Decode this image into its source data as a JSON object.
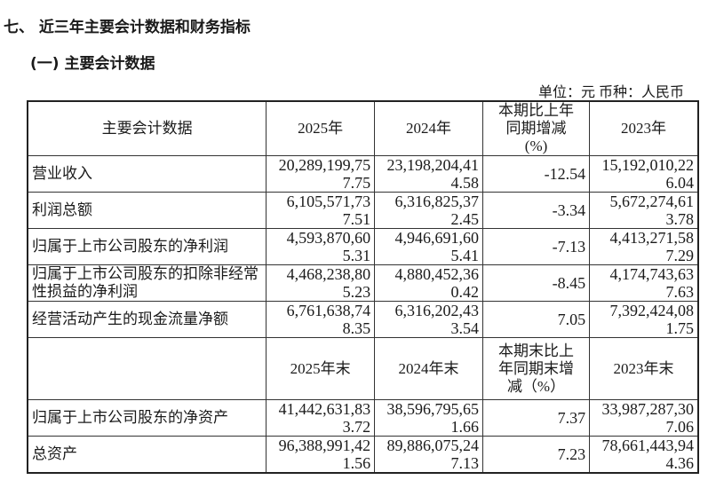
{
  "heading": "七、 近三年主要会计数据和财务指标",
  "subheading": "(一) 主要会计数据",
  "unit": "单位：元  币种：人民币",
  "header1": [
    "主要会计数据",
    "2025年",
    "2024年",
    "本期比上年同期增减(%)",
    "2023年"
  ],
  "rows1": [
    {
      "label": "营业收入",
      "v2025": "20,289,199,757.75",
      "v2024": "23,198,204,414.58",
      "change": "-12.54",
      "v2023": "15,192,010,226.04"
    },
    {
      "label": "利润总额",
      "v2025": "6,105,571,737.51",
      "v2024": "6,316,825,372.45",
      "change": "-3.34",
      "v2023": "5,672,274,613.78"
    },
    {
      "label": "归属于上市公司股东的净利润",
      "v2025": "4,593,870,605.31",
      "v2024": "4,946,691,605.41",
      "change": "-7.13",
      "v2023": "4,413,271,587.29"
    },
    {
      "label": "归属于上市公司股东的扣除非经常性损益的净利润",
      "v2025": "4,468,238,805.23",
      "v2024": "4,880,452,360.42",
      "change": "-8.45",
      "v2023": "4,174,743,637.63"
    },
    {
      "label": "经营活动产生的现金流量净额",
      "v2025": "6,761,638,748.35",
      "v2024": "6,316,202,433.54",
      "change": "7.05",
      "v2023": "7,392,424,081.75"
    }
  ],
  "header2": [
    "",
    "2025年末",
    "2024年末",
    "本期末比上年同期末增减（%）",
    "2023年末"
  ],
  "rows2": [
    {
      "label": "归属于上市公司股东的净资产",
      "v2025": "41,442,631,833.72",
      "v2024": "38,596,795,651.66",
      "change": "7.37",
      "v2023": "33,987,287,307.06"
    },
    {
      "label": "总资产",
      "v2025": "96,388,991,421.56",
      "v2024": "89,886,075,247.13",
      "change": "7.23",
      "v2023": "78,661,443,944.36"
    }
  ]
}
